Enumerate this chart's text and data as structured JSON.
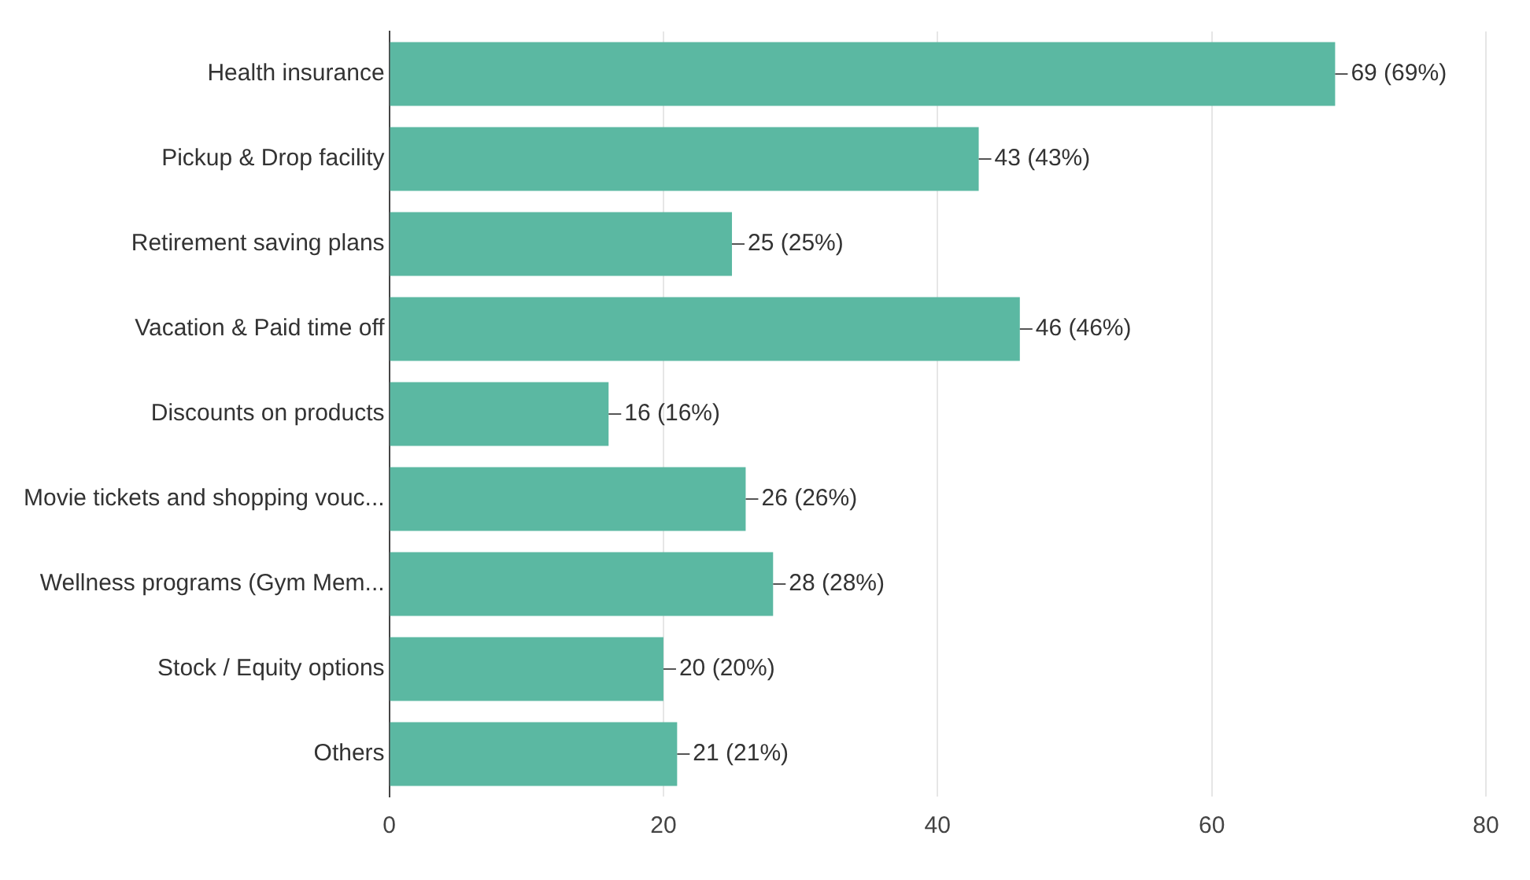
{
  "chart_data": {
    "type": "bar",
    "orientation": "horizontal",
    "categories": [
      "Health insurance",
      "Pickup & Drop facility",
      "Retirement saving plans",
      "Vacation & Paid time off",
      "Discounts on products",
      "Movie tickets and shopping vouc...",
      "Wellness programs (Gym Mem...",
      "Stock / Equity options",
      "Others"
    ],
    "values": [
      69,
      43,
      25,
      46,
      16,
      26,
      28,
      20,
      21
    ],
    "value_labels": [
      "69 (69%)",
      "43 (43%)",
      "25 (25%)",
      "46 (46%)",
      "16 (16%)",
      "26 (26%)",
      "28 (28%)",
      "20 (20%)",
      "21 (21%)"
    ],
    "color": "#5bb8a2",
    "xlim": [
      0,
      80
    ],
    "xticks": [
      0,
      20,
      40,
      60,
      80
    ],
    "grid": "x",
    "legend": false
  }
}
